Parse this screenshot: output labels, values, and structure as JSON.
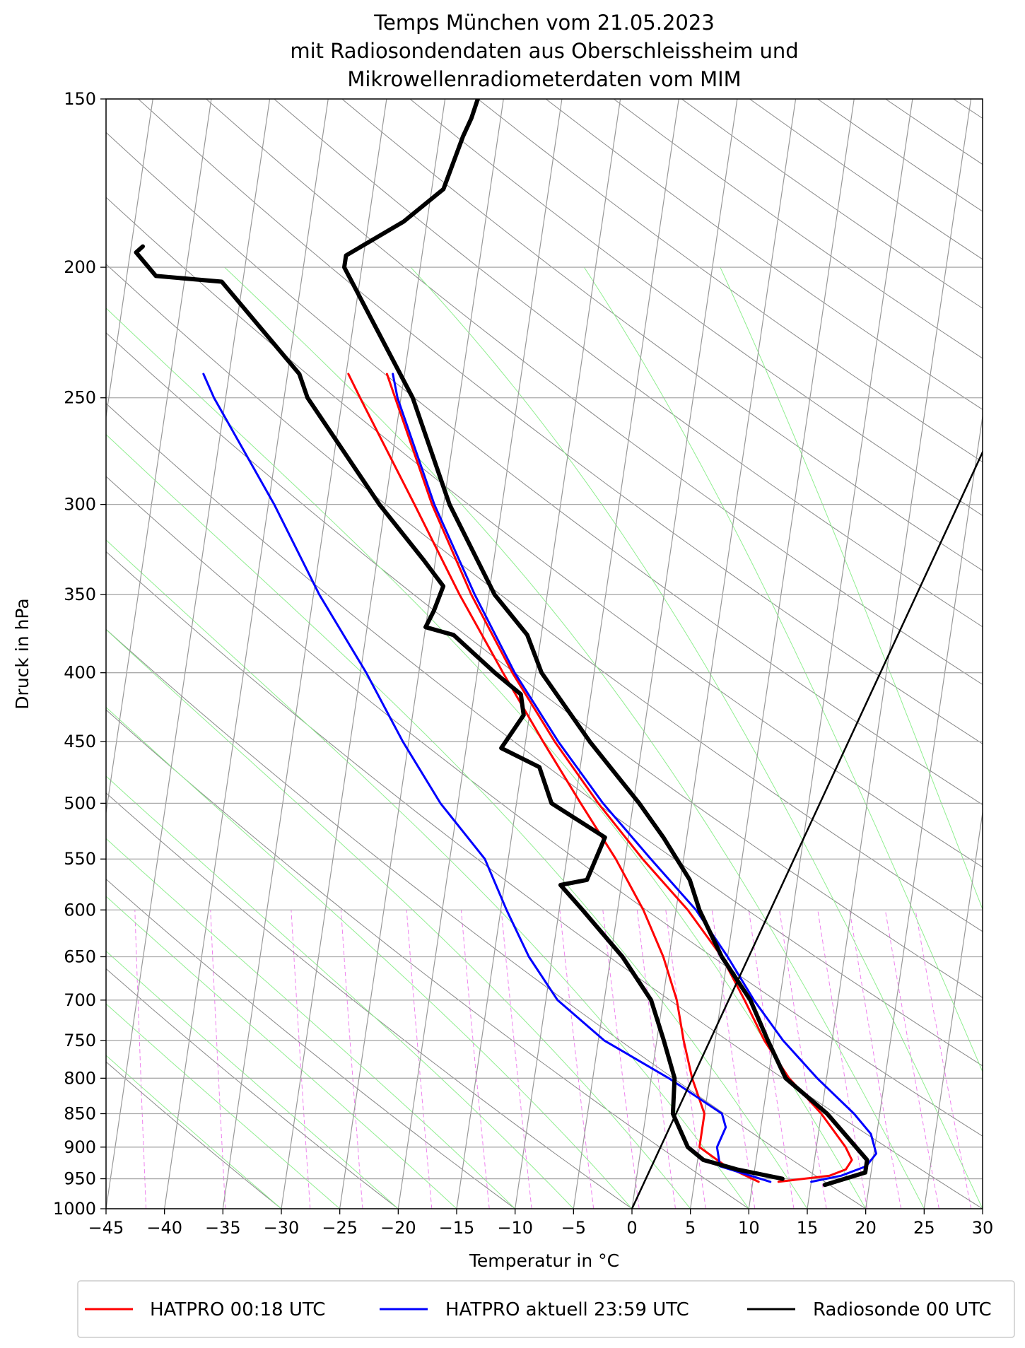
{
  "chart_data": {
    "type": "line",
    "title_lines": [
      "Temps München vom 21.05.2023",
      "mit Radiosondendaten aus Oberschleissheim und",
      "Mikrowellenradiometerdaten vom MIM"
    ],
    "xlabel": "Temperatur in °C",
    "ylabel": "Druck in hPa",
    "xlim": [
      -45,
      30
    ],
    "ylim_hpa": [
      1000,
      150
    ],
    "y_scale": "log",
    "skew_per_decade_C": 17,
    "x_ticks": [
      -45,
      -40,
      -35,
      -30,
      -25,
      -20,
      -15,
      -10,
      -5,
      0,
      5,
      10,
      15,
      20,
      25,
      30
    ],
    "x_tick_labels": [
      "−45",
      "−40",
      "−35",
      "−30",
      "−25",
      "−20",
      "−15",
      "−10",
      "−5",
      "0",
      "5",
      "10",
      "15",
      "20",
      "25",
      "30"
    ],
    "y_ticks": [
      150,
      200,
      250,
      300,
      350,
      400,
      450,
      500,
      550,
      600,
      650,
      700,
      750,
      800,
      850,
      900,
      950,
      1000
    ],
    "y_tick_labels": [
      "150",
      "200",
      "250",
      "300",
      "350",
      "400",
      "450",
      "500",
      "550",
      "600",
      "650",
      "700",
      "750",
      "800",
      "850",
      "900",
      "950",
      "1000"
    ],
    "grid": true,
    "background_lines": {
      "isotherm_color": "#999999",
      "dry_adiabat_color": "#888888",
      "moist_adiabat_color": "#90ee90",
      "mixing_ratio_color": "#ee82ee"
    },
    "legend": {
      "placement": "bottom",
      "entries": [
        {
          "label": "HATPRO 00:18 UTC",
          "color": "#ff0000"
        },
        {
          "label": "HATPRO aktuell 23:59 UTC",
          "color": "#0000ff"
        },
        {
          "label": "Radiosonde 00 UTC",
          "color": "#000000"
        }
      ]
    },
    "series": [
      {
        "name": "HATPRO 00:18 UTC",
        "kind": "temperature",
        "color": "#ff0000",
        "points": [
          [
            955,
            12.2
          ],
          [
            945,
            16.5
          ],
          [
            935,
            17.8
          ],
          [
            920,
            18.2
          ],
          [
            900,
            17.5
          ],
          [
            850,
            15.0
          ],
          [
            800,
            11.8
          ],
          [
            750,
            9.2
          ],
          [
            700,
            7.0
          ],
          [
            650,
            4.5
          ],
          [
            600,
            1.0
          ],
          [
            550,
            -3.5
          ],
          [
            500,
            -8.0
          ],
          [
            450,
            -12.5
          ],
          [
            400,
            -17.0
          ],
          [
            350,
            -21.5
          ],
          [
            300,
            -26.0
          ],
          [
            250,
            -30.5
          ],
          [
            240,
            -31.5
          ]
        ]
      },
      {
        "name": "HATPRO 00:18 UTC",
        "kind": "dewpoint",
        "color": "#ff0000",
        "points": [
          [
            955,
            10.5
          ],
          [
            930,
            7.5
          ],
          [
            900,
            5.0
          ],
          [
            850,
            5.0
          ],
          [
            800,
            3.5
          ],
          [
            750,
            2.3
          ],
          [
            700,
            1.2
          ],
          [
            650,
            -0.5
          ],
          [
            600,
            -2.8
          ],
          [
            550,
            -5.8
          ],
          [
            500,
            -9.5
          ],
          [
            450,
            -13.5
          ],
          [
            400,
            -17.8
          ],
          [
            350,
            -22.5
          ],
          [
            300,
            -27.5
          ],
          [
            250,
            -33.5
          ],
          [
            240,
            -34.8
          ]
        ]
      },
      {
        "name": "HATPRO aktuell 23:59 UTC",
        "kind": "temperature",
        "color": "#0000ff",
        "points": [
          [
            955,
            15.0
          ],
          [
            945,
            17.5
          ],
          [
            930,
            19.5
          ],
          [
            910,
            20.2
          ],
          [
            880,
            19.5
          ],
          [
            850,
            17.8
          ],
          [
            800,
            14.2
          ],
          [
            750,
            10.8
          ],
          [
            700,
            7.8
          ],
          [
            650,
            5.0
          ],
          [
            600,
            1.7
          ],
          [
            550,
            -2.8
          ],
          [
            500,
            -7.6
          ],
          [
            450,
            -12.2
          ],
          [
            400,
            -16.8
          ],
          [
            350,
            -21.2
          ],
          [
            300,
            -25.8
          ],
          [
            250,
            -30.3
          ],
          [
            240,
            -31.0
          ]
        ]
      },
      {
        "name": "HATPRO aktuell 23:59 UTC",
        "kind": "dewpoint",
        "color": "#0000ff",
        "points": [
          [
            955,
            11.5
          ],
          [
            930,
            7.0
          ],
          [
            900,
            6.5
          ],
          [
            870,
            7.0
          ],
          [
            850,
            6.5
          ],
          [
            800,
            1.5
          ],
          [
            750,
            -4.5
          ],
          [
            700,
            -9.0
          ],
          [
            650,
            -12.0
          ],
          [
            600,
            -14.5
          ],
          [
            550,
            -17.0
          ],
          [
            500,
            -21.5
          ],
          [
            450,
            -25.5
          ],
          [
            400,
            -29.5
          ],
          [
            350,
            -34.5
          ],
          [
            300,
            -39.5
          ],
          [
            250,
            -46.0
          ],
          [
            240,
            -47.2
          ]
        ]
      },
      {
        "name": "Radiosonde 00 UTC",
        "kind": "temperature",
        "color": "#000000",
        "points": [
          [
            960,
            16.2
          ],
          [
            940,
            19.5
          ],
          [
            920,
            19.5
          ],
          [
            850,
            15.5
          ],
          [
            800,
            11.5
          ],
          [
            750,
            9.5
          ],
          [
            700,
            7.5
          ],
          [
            650,
            4.5
          ],
          [
            600,
            2.0
          ],
          [
            570,
            0.8
          ],
          [
            530,
            -2.0
          ],
          [
            500,
            -4.5
          ],
          [
            450,
            -9.5
          ],
          [
            400,
            -14.5
          ],
          [
            375,
            -16.2
          ],
          [
            350,
            -19.5
          ],
          [
            300,
            -24.5
          ],
          [
            250,
            -29.0
          ],
          [
            200,
            -36.5
          ],
          [
            196,
            -36.5
          ],
          [
            185,
            -32.0
          ],
          [
            175,
            -29.0
          ],
          [
            160,
            -28.0
          ],
          [
            155,
            -27.5
          ],
          [
            150,
            -27.2
          ]
        ]
      },
      {
        "name": "Radiosonde 00 UTC",
        "kind": "dewpoint",
        "color": "#000000",
        "points": [
          [
            950,
            12.5
          ],
          [
            935,
            8.5
          ],
          [
            920,
            5.5
          ],
          [
            900,
            4.0
          ],
          [
            850,
            2.3
          ],
          [
            800,
            2.0
          ],
          [
            750,
            0.6
          ],
          [
            700,
            -1.0
          ],
          [
            650,
            -4.0
          ],
          [
            600,
            -8.0
          ],
          [
            575,
            -10.2
          ],
          [
            570,
            -8.0
          ],
          [
            530,
            -7.0
          ],
          [
            500,
            -12.0
          ],
          [
            470,
            -13.5
          ],
          [
            455,
            -17.0
          ],
          [
            430,
            -15.5
          ],
          [
            415,
            -16.0
          ],
          [
            400,
            -18.5
          ],
          [
            375,
            -22.5
          ],
          [
            370,
            -25.0
          ],
          [
            360,
            -24.5
          ],
          [
            345,
            -24.0
          ],
          [
            330,
            -26.0
          ],
          [
            300,
            -30.5
          ],
          [
            250,
            -38.0
          ],
          [
            240,
            -39.0
          ],
          [
            205,
            -46.8
          ],
          [
            203,
            -52.5
          ],
          [
            195,
            -54.5
          ],
          [
            193,
            -54.0
          ]
        ]
      },
      {
        "name": "",
        "kind": "surface-parcel",
        "color": "#000000",
        "points": [
          [
            1000,
            0
          ],
          [
            150,
            30
          ]
        ]
      }
    ]
  }
}
